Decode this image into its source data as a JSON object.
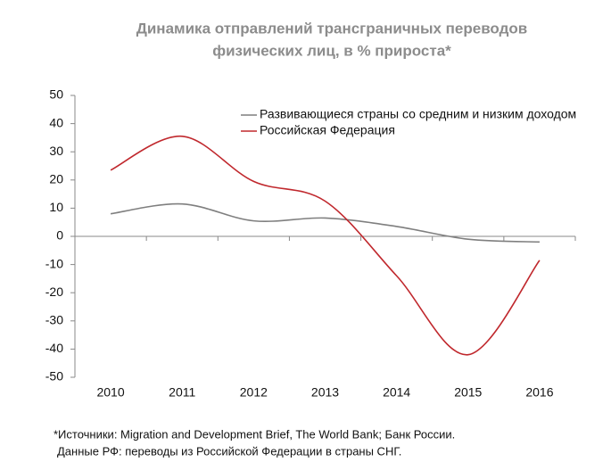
{
  "chart_data": {
    "type": "line",
    "title": [
      "Динамика отправлений трансграничных переводов",
      "физических лиц, в % прироста*"
    ],
    "categories": [
      "2010",
      "2011",
      "2012",
      "2013",
      "2014",
      "2015",
      "2016"
    ],
    "series": [
      {
        "name": "Развивающиеся страны со средним и низким доходом",
        "color": "#7f7f7f",
        "values": [
          8,
          11.5,
          5.5,
          6.5,
          3.5,
          -1,
          -2
        ]
      },
      {
        "name": "Российская Федерация",
        "color": "#c0282d",
        "values": [
          23.5,
          35.5,
          19.5,
          12.5,
          -14,
          -42,
          -8.5
        ]
      }
    ],
    "ylim": [
      -50,
      50
    ],
    "yticks": [
      -50,
      -40,
      -30,
      -20,
      -10,
      0,
      10,
      20,
      30,
      40,
      50
    ],
    "legend": "top-right",
    "smooth": true,
    "notes": [
      "*Источники: Migration and Development Brief, The World Bank; Банк России.",
      "Данные РФ: переводы из Российской Федерации в страны СНГ."
    ]
  }
}
